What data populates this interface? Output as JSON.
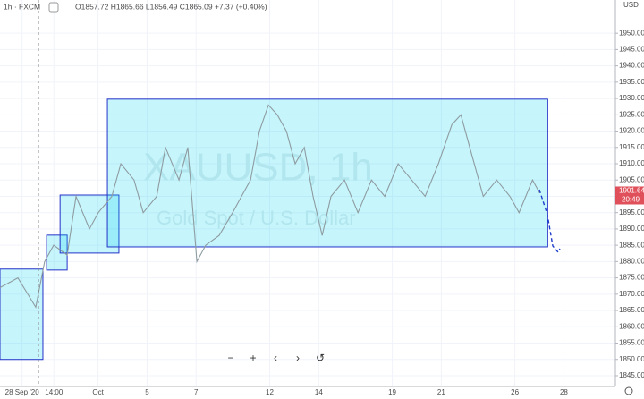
{
  "header": {
    "symbol": "1h · FXCM",
    "ohlc": "O1857.72 H1865.66 L1856.49 C1865.09 +7.37 (+0.40%)"
  },
  "watermark": {
    "ticker": "XAUUSD, 1h",
    "name": "Gold Spot / U.S. Dollar"
  },
  "currency": "USD",
  "countdown": "20:49",
  "controls": [
    "−",
    "+",
    "‹",
    "›",
    "↺"
  ],
  "chart_data": {
    "type": "line",
    "x": [
      0,
      0.73,
      1.46,
      1.82,
      2.19,
      2.74,
      3.1,
      3.65,
      4.01,
      4.56,
      4.93,
      5.47,
      5.84,
      6.39,
      6.75,
      7.3,
      7.66,
      8.03,
      8.39,
      8.94,
      9.49,
      9.85,
      10.22,
      10.58,
      10.95,
      11.31,
      11.68,
      12.04,
      12.41,
      12.77,
      13.14,
      13.5,
      14.05,
      14.6,
      15.15,
      15.69,
      16.24,
      16.79,
      17.34,
      17.88,
      18.43,
      18.8,
      19.16,
      19.71,
      20.26,
      20.8,
      21.17,
      21.72,
      22.01
    ],
    "series": [
      {
        "name": "XAUUSD",
        "color": "#8d9ca0",
        "values": [
          1872,
          1875,
          1866,
          1880,
          1885,
          1882,
          1900,
          1890,
          1895,
          1900,
          1910,
          1905,
          1895,
          1900,
          1915,
          1905,
          1915,
          1880,
          1885,
          1888,
          1895,
          1900,
          1905,
          1920,
          1928,
          1925,
          1920,
          1910,
          1915,
          1900,
          1888,
          1900,
          1905,
          1895,
          1905,
          1900,
          1910,
          1905,
          1900,
          1910,
          1922,
          1925,
          1915,
          1900,
          1905,
          1900,
          1895,
          1905,
          1901
        ]
      }
    ],
    "boxes": [
      {
        "x0": 0,
        "x1": 1.75,
        "y0": 1850,
        "y1": 1877.7
      },
      {
        "x0": 1.9,
        "x1": 2.74,
        "y0": 1877.4,
        "y1": 1888.1
      },
      {
        "x0": 2.45,
        "x1": 4.85,
        "y0": 1882.6,
        "y1": 1900.4
      },
      {
        "x0": 4.38,
        "x1": 22.34,
        "y0": 1884.5,
        "y1": 1929.8
      }
    ],
    "last_price": 1901.64,
    "xlim": [
      0,
      25.1
    ],
    "ylim": [
      1841.7,
      1960.2
    ],
    "xticks": [
      {
        "value": 0.9,
        "label": "28 Sep '20"
      },
      {
        "value": 2.2,
        "label": "14:00"
      },
      {
        "value": 4.0,
        "label": "Oct"
      },
      {
        "value": 6.0,
        "label": "5"
      },
      {
        "value": 8.0,
        "label": "7"
      },
      {
        "value": 11.0,
        "label": "12"
      },
      {
        "value": 13.0,
        "label": "14"
      },
      {
        "value": 16.0,
        "label": "19"
      },
      {
        "value": 18.0,
        "label": "21"
      },
      {
        "value": 21.0,
        "label": "26"
      },
      {
        "value": 23.0,
        "label": "28"
      }
    ],
    "yticks": [
      {
        "value": 1845,
        "label": "1845.00"
      },
      {
        "value": 1850,
        "label": "1850.00"
      },
      {
        "value": 1855,
        "label": "1855.00"
      },
      {
        "value": 1860,
        "label": "1860.00"
      },
      {
        "value": 1865,
        "label": "1865.00"
      },
      {
        "value": 1870,
        "label": "1870.00"
      },
      {
        "value": 1875,
        "label": "1875.00"
      },
      {
        "value": 1880,
        "label": "1880.00"
      },
      {
        "value": 1885,
        "label": "1885.00"
      },
      {
        "value": 1890,
        "label": "1890.00"
      },
      {
        "value": 1895,
        "label": "1895.00"
      },
      {
        "value": 1900,
        "label": "1900.00"
      },
      {
        "value": 1905,
        "label": "1905.00"
      },
      {
        "value": 1910,
        "label": "1910.00"
      },
      {
        "value": 1915,
        "label": "1915.00"
      },
      {
        "value": 1920,
        "label": "1920.00"
      },
      {
        "value": 1925,
        "label": "1925.00"
      },
      {
        "value": 1930,
        "label": "1930.00"
      },
      {
        "value": 1935,
        "label": "1935.00"
      },
      {
        "value": 1940,
        "label": "1940.00"
      },
      {
        "value": 1945,
        "label": "1945.00"
      },
      {
        "value": 1950,
        "label": "1950.00"
      }
    ],
    "grid": true
  }
}
